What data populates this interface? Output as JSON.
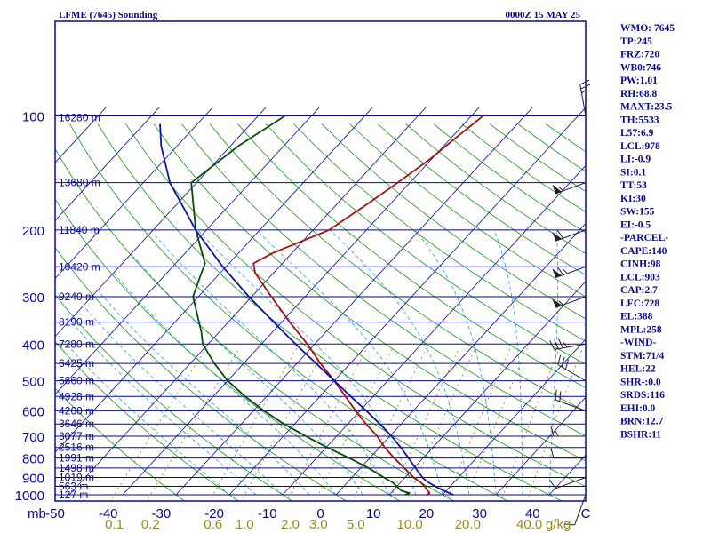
{
  "header": {
    "title": "LFME (7645) Sounding",
    "time": "0000Z 15 MAY 25"
  },
  "indices": [
    "WMO: 7645",
    "TP:245",
    "FRZ:720",
    "WB0:746",
    "PW:1.01",
    "RH:68.8",
    "MAXT:23.5",
    "TH:5533",
    "L57:6.9",
    "LCL:978",
    "LI:-0.9",
    "SI:0.1",
    "TT:53",
    "KI:30",
    "SW:155",
    "EI:-0.5",
    "-PARCEL-",
    "CAPE:140",
    "CINH:98",
    "LCL:903",
    "CAP:2.7",
    "LFC:728",
    "EL:388",
    "MPL:258",
    "-WIND-",
    "STM:71/4",
    "HEL:22",
    "SHR-:0.0",
    "SRDS:116",
    "EHI:0.0",
    "BRN:12.7",
    "BSHR:11"
  ],
  "chart_data": {
    "type": "line",
    "diagram": "skew-T log-P",
    "pressure_unit_label": "mb",
    "mixing_ratio_unit_label": "g/kg",
    "pressure_levels": [
      {
        "p": 100,
        "label": "100",
        "height": "16280 m"
      },
      {
        "p": 150,
        "label": "",
        "height": "13680 m"
      },
      {
        "p": 200,
        "label": "200",
        "height": "11840 m"
      },
      {
        "p": 250,
        "label": "",
        "height": "10420 m"
      },
      {
        "p": 300,
        "label": "300",
        "height": "9240 m"
      },
      {
        "p": 350,
        "label": "",
        "height": "8190 m"
      },
      {
        "p": 400,
        "label": "400",
        "height": "7280 m"
      },
      {
        "p": 450,
        "label": "",
        "height": "6425 m"
      },
      {
        "p": 500,
        "label": "500",
        "height": "5660 m"
      },
      {
        "p": 550,
        "label": "",
        "height": "4928 m"
      },
      {
        "p": 600,
        "label": "600",
        "height": "4260 m"
      },
      {
        "p": 650,
        "label": "",
        "height": "3646 m"
      },
      {
        "p": 700,
        "label": "700",
        "height": "3077 m"
      },
      {
        "p": 750,
        "label": "",
        "height": "2516 m"
      },
      {
        "p": 800,
        "label": "800",
        "height": "1991 m"
      },
      {
        "p": 850,
        "label": "",
        "height": "1498 m"
      },
      {
        "p": 900,
        "label": "900",
        "height": "1019 m"
      },
      {
        "p": 950,
        "label": "",
        "height": "563 m"
      },
      {
        "p": 1000,
        "label": "1000",
        "height": "127 m"
      }
    ],
    "temperature_ticks": [
      "-50",
      "-40",
      "-30",
      "-20",
      "-10",
      "0",
      "10",
      "20",
      "30",
      "40",
      "C"
    ],
    "mixing_ratio_ticks": [
      "0.1",
      "0.2",
      "0.6",
      "1.0",
      "2.0",
      "3.0",
      "5.0",
      "10.0",
      "20.0",
      "40.0"
    ],
    "series": [
      {
        "key": "temperature",
        "color": "#a01010",
        "points": [
          [
            1000,
            17.0
          ],
          [
            990,
            17.3
          ],
          [
            970,
            16.2
          ],
          [
            950,
            15.2
          ],
          [
            925,
            13.6
          ],
          [
            900,
            11.6
          ],
          [
            850,
            8.2
          ],
          [
            800,
            4.6
          ],
          [
            750,
            1.0
          ],
          [
            700,
            -2.4
          ],
          [
            650,
            -6.6
          ],
          [
            600,
            -10.8
          ],
          [
            550,
            -15.2
          ],
          [
            500,
            -20.0
          ],
          [
            450,
            -25.6
          ],
          [
            400,
            -31.4
          ],
          [
            350,
            -38.5
          ],
          [
            300,
            -46.3
          ],
          [
            260,
            -53.4
          ],
          [
            245,
            -55.4
          ],
          [
            230,
            -53.6
          ],
          [
            200,
            -47.0
          ],
          [
            170,
            -44.2
          ],
          [
            150,
            -42.3
          ],
          [
            130,
            -40.3
          ],
          [
            115,
            -39.2
          ],
          [
            100,
            -37.8
          ]
        ]
      },
      {
        "key": "dewpoint",
        "color": "#0a4a0a",
        "points": [
          [
            1000,
            13.0
          ],
          [
            990,
            13.5
          ],
          [
            975,
            11.5
          ],
          [
            950,
            10.0
          ],
          [
            925,
            8.3
          ],
          [
            900,
            6.0
          ],
          [
            850,
            1.5
          ],
          [
            800,
            -3.8
          ],
          [
            750,
            -9.8
          ],
          [
            700,
            -15.8
          ],
          [
            650,
            -22.0
          ],
          [
            600,
            -28.0
          ],
          [
            550,
            -34.0
          ],
          [
            500,
            -40.0
          ],
          [
            450,
            -45.5
          ],
          [
            400,
            -51.0
          ],
          [
            370,
            -53.5
          ],
          [
            300,
            -61.0
          ],
          [
            260,
            -63.5
          ],
          [
            245,
            -64.5
          ],
          [
            200,
            -72.0
          ],
          [
            150,
            -81.0
          ],
          [
            120,
            -78.5
          ],
          [
            100,
            -75.0
          ]
        ]
      },
      {
        "key": "parcel",
        "color": "#1010a0",
        "points": [
          [
            1000,
            22.0
          ],
          [
            990,
            21.0
          ],
          [
            970,
            19.0
          ],
          [
            950,
            17.2
          ],
          [
            925,
            15.0
          ],
          [
            903,
            13.4
          ],
          [
            850,
            10.3
          ],
          [
            800,
            7.3
          ],
          [
            750,
            4.0
          ],
          [
            700,
            0.3
          ],
          [
            650,
            -4.0
          ],
          [
            600,
            -8.8
          ],
          [
            550,
            -14.2
          ],
          [
            500,
            -20.0
          ],
          [
            450,
            -26.4
          ],
          [
            400,
            -33.6
          ],
          [
            350,
            -41.5
          ],
          [
            300,
            -50.5
          ],
          [
            250,
            -60.6
          ],
          [
            200,
            -72.0
          ],
          [
            150,
            -85.0
          ],
          [
            120,
            -93.0
          ],
          [
            105,
            -97.0
          ]
        ]
      }
    ],
    "wind_barbs": [
      {
        "p": 100,
        "dir": 350,
        "spd": 25
      },
      {
        "p": 150,
        "dir": 250,
        "spd": 55
      },
      {
        "p": 200,
        "dir": 250,
        "spd": 60
      },
      {
        "p": 250,
        "dir": 250,
        "spd": 65
      },
      {
        "p": 300,
        "dir": 250,
        "spd": 55
      },
      {
        "p": 400,
        "dir": 260,
        "spd": 35
      },
      {
        "p": 500,
        "dir": 300,
        "spd": 30
      },
      {
        "p": 600,
        "dir": 290,
        "spd": 20
      },
      {
        "p": 700,
        "dir": 270,
        "spd": 15
      },
      {
        "p": 800,
        "dir": 270,
        "spd": 10
      },
      {
        "p": 900,
        "dir": 250,
        "spd": 10
      },
      {
        "p": 1000,
        "dir": 200,
        "spd": 15
      }
    ],
    "colors": {
      "frame": "#0a0a8a",
      "isobar": "#0a0a8a",
      "isotherm": "#2020a0",
      "dry_adiabat": "#30a030",
      "moist_adiabat": "#40a8d8",
      "mixing_ratio": "#a08a30",
      "wind_barb": "#202020",
      "mixing_ratio_label": "#9a8a20"
    }
  }
}
